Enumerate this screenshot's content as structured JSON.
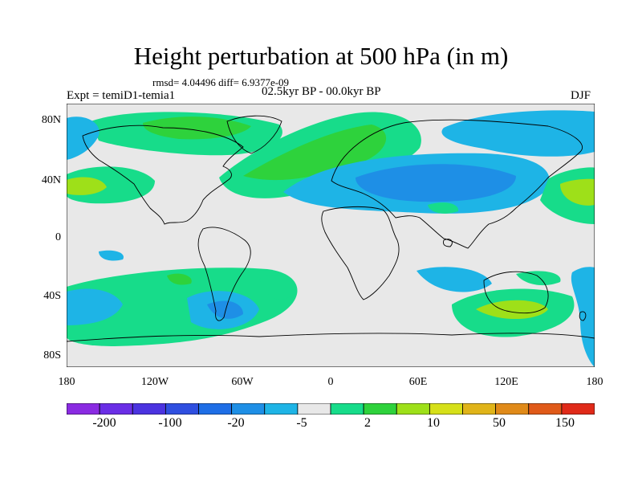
{
  "title": "Height perturbation at 500 hPa (in m)",
  "stats": "rmsd= 4.04496 diff= 6.9377e-09",
  "experiment": "Expt = temiD1-temia1",
  "period": "02.5kyr BP - 00.0kyr BP",
  "season": "DJF",
  "lat_ticks": [
    "80N",
    "40N",
    "0",
    "40S",
    "80S"
  ],
  "lon_ticks": [
    "180",
    "120W",
    "60W",
    "0",
    "60E",
    "120E",
    "180"
  ],
  "colorbar": {
    "colors": [
      "#8a2be2",
      "#6a2ee6",
      "#4b33e0",
      "#2f4fe0",
      "#1e6ee6",
      "#1e8fe6",
      "#1eb4e6",
      "#e8e8e8",
      "#17dc8a",
      "#2ed23c",
      "#9ee019",
      "#d6e019",
      "#e0b419",
      "#e08a19",
      "#e05a19",
      "#e02a19"
    ],
    "labels": [
      "-200",
      "-100",
      "-20",
      "-5",
      "2",
      "10",
      "50",
      "150"
    ]
  },
  "fields": {
    "map_background": "#e8e8e8",
    "blue": "#1eb4e6",
    "deep_blue": "#1e8fe6",
    "green": "#17dc8a",
    "lime": "#2ed23c",
    "yellow_green": "#9ee019"
  }
}
